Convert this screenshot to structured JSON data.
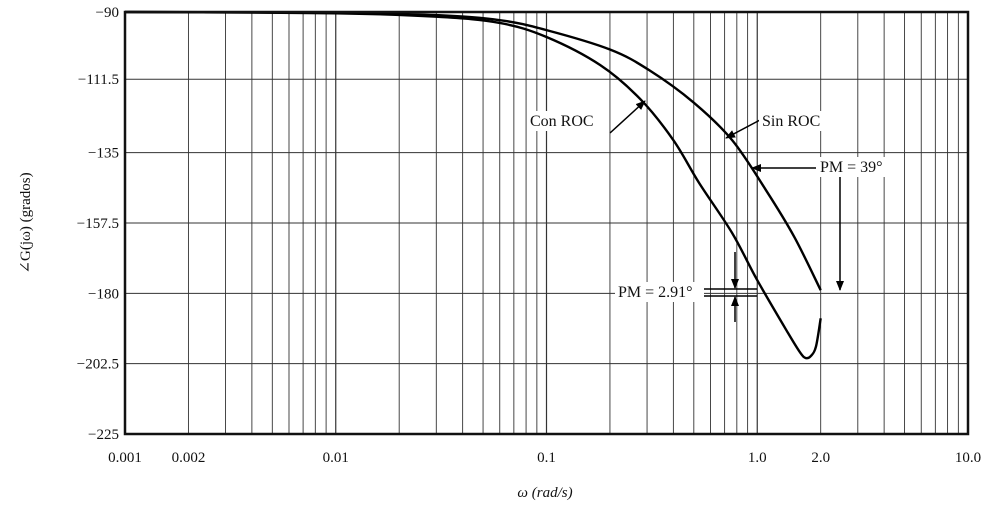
{
  "chart_data": {
    "type": "line",
    "title": "",
    "xlabel": "ω (rad/s)",
    "ylabel": "∠G(jω) (grados)",
    "xscale": "log",
    "xlim": [
      0.001,
      10.0
    ],
    "ylim": [
      -225,
      -90
    ],
    "grid": true,
    "x_ticks": [
      0.001,
      0.002,
      0.01,
      0.1,
      1.0,
      2.0,
      10.0
    ],
    "x_tick_labels": [
      "0.001",
      "0.002",
      "0.01",
      "0.1",
      "1.0",
      "2.0",
      "10.0"
    ],
    "y_ticks": [
      -90,
      -111.5,
      -135,
      -157.5,
      -180,
      -202.5,
      -225
    ],
    "y_tick_labels": [
      "−90",
      "−111.5",
      "−135",
      "−157.5",
      "−180",
      "−202.5",
      "−225"
    ],
    "series": [
      {
        "name": "Sin ROC",
        "x": [
          0.001,
          0.01,
          0.03,
          0.06,
          0.1,
          0.2,
          0.307,
          0.5,
          0.76,
          1.1,
          1.5,
          2.0
        ],
        "y": [
          -90,
          -90.3,
          -91,
          -92.6,
          -95.8,
          -102,
          -108.6,
          -119,
          -131,
          -147,
          -162,
          -179
        ]
      },
      {
        "name": "Con ROC",
        "x": [
          0.001,
          0.01,
          0.03,
          0.06,
          0.1,
          0.18,
          0.28,
          0.4,
          0.53,
          0.76,
          1.0,
          1.4,
          1.6,
          1.7,
          1.8,
          1.9,
          2.0
        ],
        "y": [
          -90,
          -90.4,
          -91.5,
          -93.5,
          -98,
          -107,
          -118,
          -131,
          -144.7,
          -160.7,
          -175.8,
          -192.7,
          -199,
          -200.7,
          -200,
          -197,
          -188
        ]
      }
    ],
    "annotations": [
      {
        "text": "Con ROC",
        "target_series": "Con ROC"
      },
      {
        "text": "Sin ROC",
        "target_series": "Sin ROC"
      },
      {
        "text": "PM = 39°",
        "target_series": "Sin ROC"
      },
      {
        "text": "PM = 2.91°",
        "target_series": "Con ROC"
      }
    ]
  }
}
